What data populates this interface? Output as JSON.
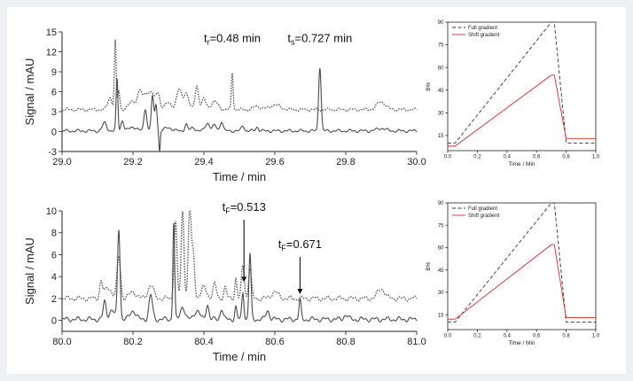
{
  "chart_data": [
    {
      "type": "line",
      "xlabel": "Time / min",
      "ylabel": "Signal / mAU",
      "xlim": [
        29.0,
        30.0
      ],
      "ylim": [
        -3,
        15
      ],
      "xticks": [
        29.0,
        29.2,
        29.4,
        29.6,
        29.8,
        30.0
      ],
      "xtick_labels": [
        "29.0",
        "29.2",
        "29.4",
        "29.6",
        "29.8",
        "30.0"
      ],
      "yticks": [
        -3,
        0,
        3,
        6,
        9,
        12,
        15
      ],
      "ytick_labels": [
        "-3",
        "0",
        "3",
        "6",
        "9",
        "12",
        "15"
      ],
      "annotations": [
        {
          "text": "tr=0.48 min",
          "main": "t",
          "sub": "r",
          "rest": "=0.48 min",
          "x": 29.48,
          "y": 13.5
        },
        {
          "text": "ts=0.727 min",
          "main": "t",
          "sub": "s",
          "rest": "=0.727 min",
          "x": 29.727,
          "y": 13.5
        }
      ],
      "series": [
        {
          "style": "dotted",
          "color": "#555555",
          "baseline": 3.3,
          "peaks": [
            [
              29.135,
              1.8,
              0.006
            ],
            [
              29.15,
              10.3,
              0.0025
            ],
            [
              29.16,
              2.8,
              0.003
            ],
            [
              29.2,
              1.2,
              0.012
            ],
            [
              29.22,
              2.7,
              0.006
            ],
            [
              29.235,
              2.0,
              0.005
            ],
            [
              29.25,
              2.8,
              0.008
            ],
            [
              29.27,
              2.5,
              0.006
            ],
            [
              29.3,
              1.0,
              0.01
            ],
            [
              29.33,
              3.0,
              0.007
            ],
            [
              29.35,
              2.5,
              0.007
            ],
            [
              29.38,
              3.6,
              0.005
            ],
            [
              29.4,
              1.6,
              0.006
            ],
            [
              29.43,
              1.2,
              0.01
            ],
            [
              29.48,
              5.6,
              0.0025
            ],
            [
              29.55,
              0.5,
              0.01
            ],
            [
              29.6,
              0.7,
              0.015
            ],
            [
              29.9,
              1.2,
              0.012
            ]
          ]
        },
        {
          "style": "solid",
          "color": "#4a4a4a",
          "baseline": 0.1,
          "peaks": [
            [
              29.12,
              1.2,
              0.006
            ],
            [
              29.155,
              7.9,
              0.0025
            ],
            [
              29.17,
              1.6,
              0.004
            ],
            [
              29.2,
              0.6,
              0.01
            ],
            [
              29.235,
              3.4,
              0.004
            ],
            [
              29.255,
              5.2,
              0.0035
            ],
            [
              29.265,
              4.0,
              0.003
            ],
            [
              29.275,
              -3.2,
              0.0018
            ],
            [
              29.3,
              0.5,
              0.01
            ],
            [
              29.35,
              1.0,
              0.004
            ],
            [
              29.37,
              0.5,
              0.006
            ],
            [
              29.41,
              1.2,
              0.006
            ],
            [
              29.43,
              0.8,
              0.006
            ],
            [
              29.45,
              1.5,
              0.004
            ],
            [
              29.51,
              0.8,
              0.004
            ],
            [
              29.55,
              0.6,
              0.004
            ],
            [
              29.727,
              9.7,
              0.0035
            ],
            [
              29.9,
              0.4,
              0.012
            ]
          ]
        }
      ]
    },
    {
      "type": "line",
      "xlabel": "Time / Min",
      "ylabel": "B%",
      "xlim": [
        0.0,
        1.0
      ],
      "ylim": [
        5,
        90
      ],
      "xticks": [
        0.0,
        0.2,
        0.4,
        0.6,
        0.8,
        1.0
      ],
      "xtick_labels": [
        "0.0",
        "0.2",
        "0.4",
        "0.6",
        "0.8",
        "1.0"
      ],
      "yticks": [
        15,
        30,
        45,
        60,
        75,
        90
      ],
      "ytick_labels": [
        "15",
        "30",
        "45",
        "60",
        "75",
        "90"
      ],
      "legend_position": "top-left",
      "series": [
        {
          "name": "Full gradient",
          "style": "dashed",
          "color": "#333333",
          "x": [
            0.0,
            0.05,
            0.7,
            0.72,
            0.8,
            1.0
          ],
          "y": [
            10,
            10,
            90,
            90,
            10,
            10
          ]
        },
        {
          "name": "Shift gradient",
          "style": "solid",
          "color": "#d42a2a",
          "x": [
            0.0,
            0.05,
            0.7,
            0.72,
            0.8,
            1.0
          ],
          "y": [
            8,
            8,
            55,
            55,
            13,
            13
          ]
        }
      ]
    },
    {
      "type": "line",
      "xlabel": "Time / min",
      "ylabel": "Signal / mAU",
      "xlim": [
        80.0,
        81.0
      ],
      "ylim": [
        -1,
        10
      ],
      "xticks": [
        80.0,
        80.2,
        80.4,
        80.6,
        80.8,
        81.0
      ],
      "xtick_labels": [
        "80.0",
        "80.2",
        "80.4",
        "80.6",
        "80.8",
        "81.0"
      ],
      "yticks": [
        0,
        2,
        4,
        6,
        8,
        10
      ],
      "ytick_labels": [
        "0",
        "2",
        "4",
        "6",
        "8",
        "10"
      ],
      "annotations": [
        {
          "text": "tF=0.513",
          "main": "t",
          "sub": "F",
          "rest": "=0.513",
          "x": 80.513,
          "y": 10.0
        },
        {
          "text": "tF=0.671",
          "main": "t",
          "sub": "F",
          "rest": "=0.671",
          "x": 80.671,
          "y": 6.6
        }
      ],
      "arrows": [
        {
          "x": 80.513,
          "y_from": 9.2,
          "y_to": 3.5
        },
        {
          "x": 80.671,
          "y_from": 5.8,
          "y_to": 2.4
        }
      ],
      "series": [
        {
          "style": "dotted",
          "color": "#555555",
          "baseline": 2.0,
          "peaks": [
            [
              80.11,
              1.5,
              0.004
            ],
            [
              80.13,
              1.0,
              0.01
            ],
            [
              80.16,
              3.8,
              0.005
            ],
            [
              80.2,
              0.6,
              0.01
            ],
            [
              80.25,
              1.2,
              0.008
            ],
            [
              80.32,
              7.0,
              0.004
            ],
            [
              80.34,
              8.0,
              0.004
            ],
            [
              80.36,
              8.3,
              0.004
            ],
            [
              80.37,
              4.0,
              0.004
            ],
            [
              80.4,
              1.0,
              0.008
            ],
            [
              80.43,
              1.3,
              0.005
            ],
            [
              80.46,
              1.0,
              0.004
            ],
            [
              80.49,
              1.8,
              0.003
            ],
            [
              80.51,
              3.0,
              0.004
            ],
            [
              80.53,
              2.8,
              0.004
            ],
            [
              80.6,
              0.6,
              0.01
            ],
            [
              80.9,
              0.9,
              0.01
            ]
          ]
        },
        {
          "style": "solid",
          "color": "#4a4a4a",
          "baseline": 0.1,
          "peaks": [
            [
              80.12,
              1.6,
              0.004
            ],
            [
              80.14,
              0.8,
              0.008
            ],
            [
              80.16,
              8.3,
              0.0035
            ],
            [
              80.2,
              0.8,
              0.008
            ],
            [
              80.25,
              2.2,
              0.005
            ],
            [
              80.315,
              9.0,
              0.0025
            ],
            [
              80.34,
              1.2,
              0.006
            ],
            [
              80.38,
              0.8,
              0.008
            ],
            [
              80.41,
              1.4,
              0.004
            ],
            [
              80.45,
              1.0,
              0.004
            ],
            [
              80.49,
              1.1,
              0.003
            ],
            [
              80.51,
              2.5,
              0.003
            ],
            [
              80.53,
              6.0,
              0.003
            ],
            [
              80.58,
              0.8,
              0.005
            ],
            [
              80.671,
              1.7,
              0.003
            ],
            [
              80.8,
              0.4,
              0.006
            ]
          ]
        }
      ]
    },
    {
      "type": "line",
      "xlabel": "Time / Min",
      "ylabel": "B%",
      "xlim": [
        0.0,
        1.0
      ],
      "ylim": [
        5,
        90
      ],
      "xticks": [
        0.0,
        0.2,
        0.4,
        0.6,
        0.8,
        1.0
      ],
      "xtick_labels": [
        "0.0",
        "0.2",
        "0.4",
        "0.6",
        "0.8",
        "1.0"
      ],
      "yticks": [
        15,
        30,
        45,
        60,
        75,
        90
      ],
      "ytick_labels": [
        "15",
        "30",
        "45",
        "60",
        "75",
        "90"
      ],
      "legend_position": "top-left",
      "series": [
        {
          "name": "Full gradient",
          "style": "dashed",
          "color": "#333333",
          "x": [
            0.0,
            0.05,
            0.7,
            0.72,
            0.8,
            1.0
          ],
          "y": [
            10,
            10,
            90,
            90,
            10,
            10
          ]
        },
        {
          "name": "Shift gradient",
          "style": "solid",
          "color": "#d42a2a",
          "x": [
            0.0,
            0.05,
            0.7,
            0.72,
            0.8,
            1.0
          ],
          "y": [
            12,
            12,
            62,
            62,
            13,
            13
          ]
        }
      ]
    }
  ]
}
